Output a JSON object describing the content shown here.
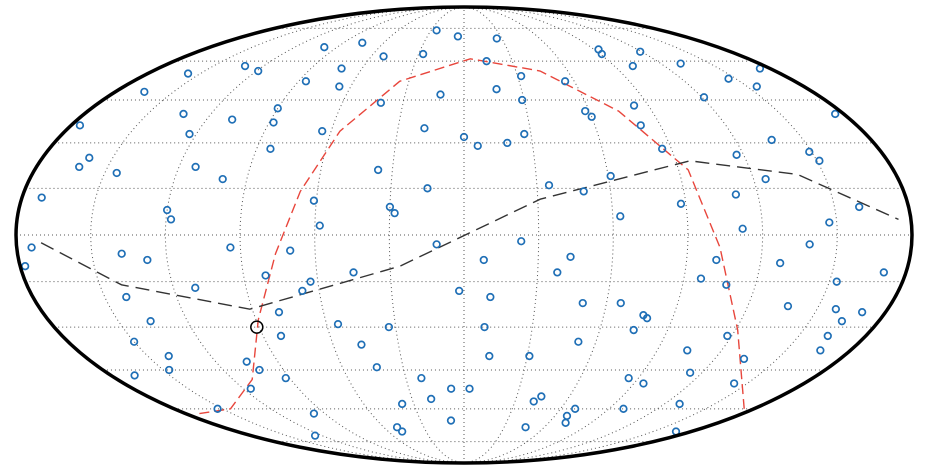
{
  "chart_data": {
    "type": "scatter",
    "projection": "mollweide",
    "xlim": [
      -180,
      180
    ],
    "ylim": [
      -90,
      90
    ],
    "xticks": [
      -150,
      -120,
      -90,
      -60,
      -30,
      0,
      30,
      60,
      90,
      120,
      150
    ],
    "yticks": [
      -75,
      -60,
      -45,
      -30,
      -15,
      0,
      15,
      30,
      45,
      60,
      75
    ],
    "grid": true,
    "color": "#1f6fb6",
    "x": [
      -172,
      -150,
      -131,
      -118,
      -97,
      -84,
      -63,
      -41,
      -22,
      -5,
      8,
      27,
      44,
      61,
      79,
      93,
      112,
      134,
      151,
      168,
      -165,
      -141,
      -120,
      -102,
      -88,
      -70,
      -52,
      -33,
      -15,
      3,
      19,
      38,
      55,
      72,
      88,
      104,
      121,
      139,
      158,
      176,
      -178,
      -157,
      -136,
      -113,
      -92,
      -76,
      -58,
      -37,
      -18,
      -2,
      14,
      31,
      49,
      66,
      83,
      99,
      117,
      128,
      146,
      163,
      -168,
      -145,
      -126,
      -108,
      -81,
      -66,
      -47,
      -28,
      -9,
      6,
      23,
      41,
      58,
      75,
      91,
      108,
      125,
      143,
      160,
      174,
      -160,
      -138,
      -116,
      -99,
      -79,
      -61,
      -43,
      -25,
      -11,
      11,
      29,
      46,
      63,
      81,
      97,
      114,
      132,
      149,
      166,
      -174,
      -153,
      -133,
      -111,
      -94,
      -72,
      -55,
      -36,
      -19,
      0,
      17,
      35,
      52,
      69,
      86,
      102,
      119,
      137,
      155,
      171,
      -147,
      -123,
      -105,
      -86,
      -67,
      -49,
      -30,
      -12,
      9,
      26,
      43,
      60,
      77,
      95,
      111,
      129,
      147,
      164,
      -162,
      -140,
      -119,
      -100,
      -82,
      -64,
      -45,
      -27,
      -7,
      12,
      32,
      50,
      68,
      85,
      101,
      118,
      136,
      153,
      170,
      -176,
      -128,
      -90,
      -50
    ],
    "y": [
      12,
      -35,
      58,
      5,
      -62,
      28,
      -15,
      44,
      -48,
      71,
      -8,
      33,
      -55,
      19,
      -27,
      65,
      2,
      -41,
      24,
      -70,
      48,
      -20,
      8,
      -45,
      37,
      -5,
      62,
      -30,
      15,
      -52,
      30,
      -12,
      52,
      -66,
      10,
      -38,
      46,
      -3,
      -24,
      40,
      -10,
      55,
      -28,
      22,
      -48,
      68,
      3,
      -58,
      35,
      -18,
      60,
      -40,
      14,
      -22,
      43,
      -60,
      26,
      -9,
      53,
      -33,
      -47,
      20,
      -72,
      38,
      -13,
      50,
      -36,
      7,
      -65,
      29,
      -2,
      -57,
      41,
      -31,
      63,
      -16,
      18,
      -50,
      9,
      57,
      25,
      -6,
      -52,
      66,
      -25,
      11,
      -44,
      74,
      -3,
      -20,
      45,
      -68,
      6,
      36,
      -14,
      -46,
      59,
      27,
      -38,
      -4,
      -60,
      40,
      -17,
      -4,
      57,
      -29,
      21,
      -56,
      32,
      49,
      16,
      -35,
      -60,
      28,
      -8,
      64,
      -23,
      50,
      -12,
      -45,
      33,
      -42,
      52,
      -18,
      -70,
      9,
      47,
      -30,
      70,
      -7,
      39,
      -26,
      -50,
      13,
      -58,
      4,
      -28,
      22,
      -40,
      56,
      18,
      -33,
      34,
      -12,
      63,
      -52,
      -40,
      54,
      -22,
      -63,
      -48,
      58,
      -33,
      31,
      -15,
      -25,
      36,
      -8,
      42,
      -68
    ],
    "highlight": {
      "x": -91,
      "y": -30,
      "color": "#000000"
    },
    "curves": [
      {
        "color": "#e8463c",
        "x": [
          -171,
          -145,
          -110,
          -89,
          -76,
          -67,
          -56,
          -35,
          4,
          44,
          74,
          94,
          103,
          121,
          174
        ],
        "y": [
          -62,
          -60,
          -48.5,
          -27.5,
          -6,
          14,
          34,
          52,
          61,
          56,
          41,
          21,
          -4,
          -31,
          -60
        ]
      },
      {
        "color": "#333333",
        "x": [
          -170,
          -141,
          -91,
          -26,
          31,
          96,
          139,
          175
        ],
        "y": [
          -2.5,
          -16,
          -24,
          -10,
          11.5,
          24,
          19.5,
          5
        ]
      }
    ]
  }
}
